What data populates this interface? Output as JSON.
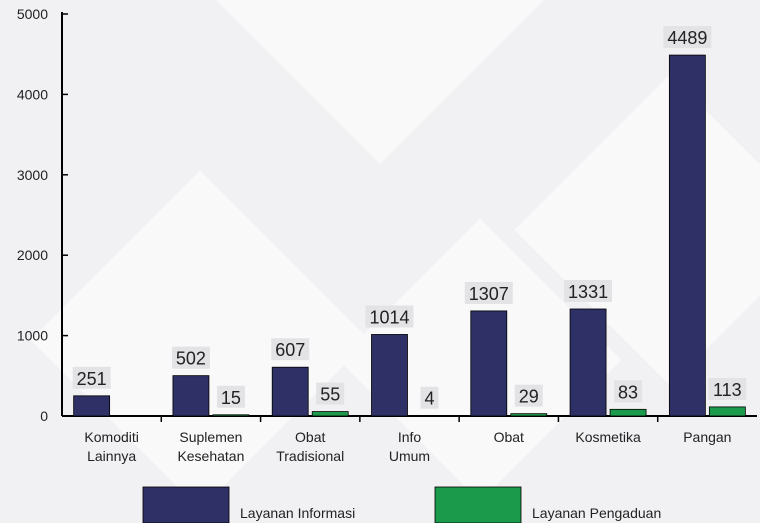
{
  "chart_data": {
    "type": "bar",
    "categories": [
      [
        "Komoditi",
        "Lainnya"
      ],
      [
        "Suplemen",
        "Kesehatan"
      ],
      [
        "Obat",
        "Tradisional"
      ],
      [
        "Info",
        "Umum"
      ],
      [
        "Obat"
      ],
      [
        "Kosmetika"
      ],
      [
        "Pangan"
      ]
    ],
    "series": [
      {
        "name": "Layanan Informasi",
        "color": "#2e3066",
        "values": [
          251,
          502,
          607,
          1014,
          1307,
          1331,
          4489
        ]
      },
      {
        "name": "Layanan Pengaduan",
        "color": "#1b9a4b",
        "values": [
          null,
          15,
          55,
          4,
          29,
          83,
          113
        ]
      }
    ],
    "ylim": [
      0,
      5000
    ],
    "yticks": [
      0,
      1000,
      2000,
      3000,
      4000,
      5000
    ],
    "legend": "bottom"
  }
}
